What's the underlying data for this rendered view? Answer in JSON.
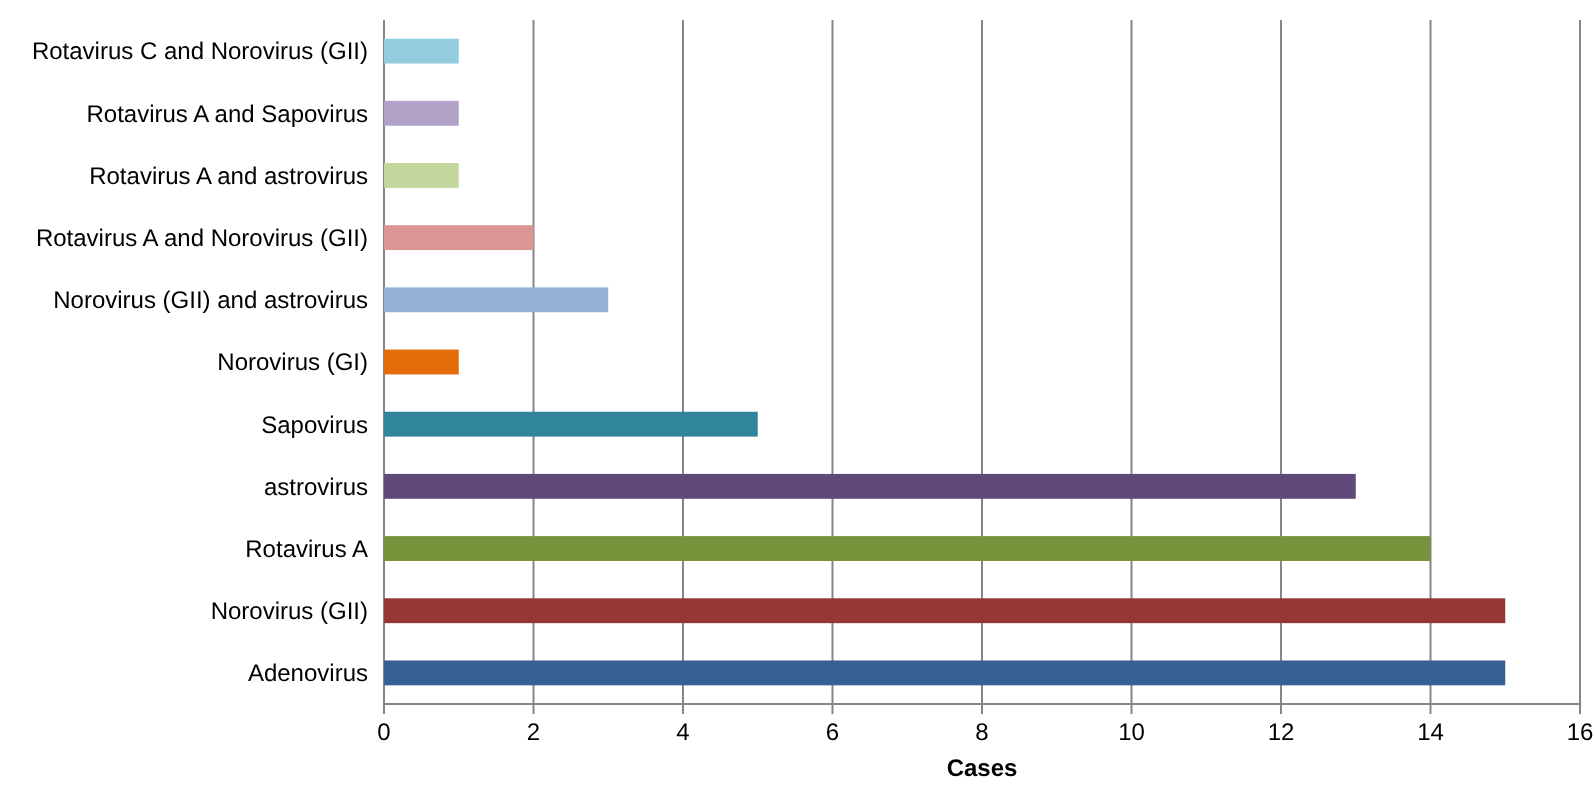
{
  "chart_data": {
    "type": "bar",
    "orientation": "horizontal",
    "xlabel": "Cases",
    "categories": [
      "Rotavirus C and Norovirus (GII)",
      "Rotavirus A and Sapovirus",
      "Rotavirus A and astrovirus",
      "Rotavirus A and Norovirus (GII)",
      "Norovirus (GII) and astrovirus",
      "Norovirus (GI)",
      "Sapovirus",
      "astrovirus",
      "Rotavirus A",
      "Norovirus (GII)",
      "Adenovirus"
    ],
    "values": [
      1,
      1,
      1,
      2,
      3,
      1,
      5,
      13,
      14,
      15,
      15
    ],
    "colors": [
      "#93cddd",
      "#b3a2c7",
      "#c3d69b",
      "#d99694",
      "#95b3d7",
      "#e46c0a",
      "#31859c",
      "#604a7b",
      "#77933c",
      "#953735",
      "#376092"
    ],
    "xlim": [
      0,
      16
    ],
    "xticks": [
      0,
      2,
      4,
      6,
      8,
      10,
      12,
      14,
      16
    ],
    "grid": "x"
  }
}
